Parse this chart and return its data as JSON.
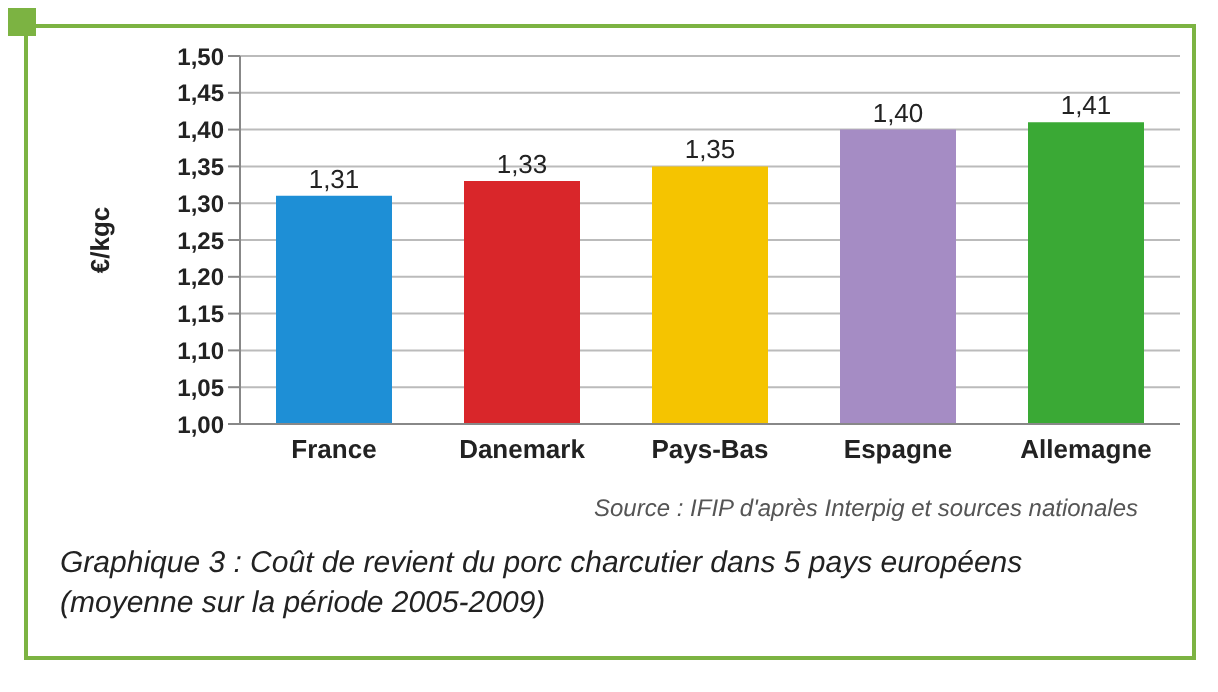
{
  "chart_data": {
    "type": "bar",
    "title": "Graphique 3 : Coût de revient du porc charcutier dans 5 pays européens (moyenne sur la période 2005-2009)",
    "ylabel": "€/kgc",
    "categories": [
      "France",
      "Danemark",
      "Pays-Bas",
      "Espagne",
      "Allemagne"
    ],
    "values": [
      1.31,
      1.33,
      1.35,
      1.4,
      1.41
    ],
    "value_labels": [
      "1,31",
      "1,33",
      "1,35",
      "1,40",
      "1,41"
    ],
    "colors": [
      "#1e8fd6",
      "#d9262a",
      "#f5c400",
      "#a58cc4",
      "#3aa935"
    ],
    "ylim": [
      1.0,
      1.5
    ],
    "yticks": [
      {
        "value": 1.0,
        "label": "1,00"
      },
      {
        "value": 1.05,
        "label": "1,05"
      },
      {
        "value": 1.1,
        "label": "1,10"
      },
      {
        "value": 1.15,
        "label": "1,15"
      },
      {
        "value": 1.2,
        "label": "1,20"
      },
      {
        "value": 1.25,
        "label": "1,25"
      },
      {
        "value": 1.3,
        "label": "1,30"
      },
      {
        "value": 1.35,
        "label": "1,35"
      },
      {
        "value": 1.4,
        "label": "1,40"
      },
      {
        "value": 1.45,
        "label": "1,45"
      },
      {
        "value": 1.5,
        "label": "1,50"
      }
    ],
    "grid": "y",
    "annotations": [
      "Source : IFIP d'après Interpig et sources nationales"
    ]
  }
}
